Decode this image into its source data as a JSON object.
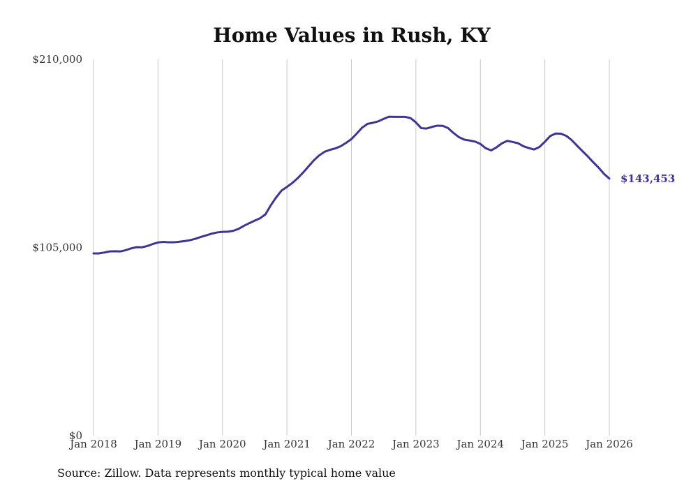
{
  "chart_data": {
    "type": "line",
    "title": "Home Values in Rush, KY",
    "xlabel": "",
    "ylabel": "",
    "ylim": [
      0,
      210000
    ],
    "y_ticks": [
      0,
      105000,
      210000
    ],
    "y_tick_labels": [
      "$0",
      "$105,000",
      "$210,000"
    ],
    "x_range": [
      2018.0,
      2026.0
    ],
    "x_ticks": [
      2018,
      2019,
      2020,
      2021,
      2022,
      2023,
      2024,
      2025,
      2026
    ],
    "x_tick_labels": [
      "Jan 2018",
      "Jan 2019",
      "Jan 2020",
      "Jan 2021",
      "Jan 2022",
      "Jan 2023",
      "Jan 2024",
      "Jan 2025",
      "Jan 2026"
    ],
    "grid": "vertical",
    "line_color": "#3d3590",
    "end_label": "$143,453",
    "series": [
      {
        "name": "Home Values",
        "points": [
          [
            2018.0,
            101700
          ],
          [
            2018.083,
            101700
          ],
          [
            2018.167,
            102200
          ],
          [
            2018.25,
            102800
          ],
          [
            2018.333,
            102900
          ],
          [
            2018.417,
            102800
          ],
          [
            2018.5,
            103500
          ],
          [
            2018.583,
            104500
          ],
          [
            2018.667,
            105200
          ],
          [
            2018.75,
            105100
          ],
          [
            2018.833,
            105800
          ],
          [
            2018.917,
            106900
          ],
          [
            2019.0,
            107800
          ],
          [
            2019.083,
            108100
          ],
          [
            2019.167,
            107900
          ],
          [
            2019.25,
            107900
          ],
          [
            2019.333,
            108200
          ],
          [
            2019.417,
            108600
          ],
          [
            2019.5,
            109100
          ],
          [
            2019.583,
            109900
          ],
          [
            2019.667,
            110900
          ],
          [
            2019.75,
            111800
          ],
          [
            2019.833,
            112700
          ],
          [
            2019.917,
            113400
          ],
          [
            2020.0,
            113700
          ],
          [
            2020.083,
            113800
          ],
          [
            2020.167,
            114300
          ],
          [
            2020.25,
            115400
          ],
          [
            2020.333,
            117100
          ],
          [
            2020.417,
            118600
          ],
          [
            2020.5,
            120000
          ],
          [
            2020.583,
            121300
          ],
          [
            2020.667,
            123500
          ],
          [
            2020.75,
            128600
          ],
          [
            2020.833,
            133000
          ],
          [
            2020.917,
            136800
          ],
          [
            2021.0,
            138800
          ],
          [
            2021.083,
            141000
          ],
          [
            2021.167,
            143700
          ],
          [
            2021.25,
            146800
          ],
          [
            2021.333,
            150200
          ],
          [
            2021.417,
            153600
          ],
          [
            2021.5,
            156400
          ],
          [
            2021.583,
            158400
          ],
          [
            2021.667,
            159500
          ],
          [
            2021.75,
            160300
          ],
          [
            2021.833,
            161500
          ],
          [
            2021.917,
            163400
          ],
          [
            2022.0,
            165500
          ],
          [
            2022.083,
            168600
          ],
          [
            2022.167,
            171900
          ],
          [
            2022.25,
            174000
          ],
          [
            2022.333,
            174600
          ],
          [
            2022.417,
            175400
          ],
          [
            2022.5,
            176800
          ],
          [
            2022.583,
            178000
          ],
          [
            2022.667,
            177900
          ],
          [
            2022.75,
            177900
          ],
          [
            2022.833,
            177900
          ],
          [
            2022.917,
            177200
          ],
          [
            2023.0,
            174800
          ],
          [
            2023.083,
            171600
          ],
          [
            2023.167,
            171400
          ],
          [
            2023.25,
            172300
          ],
          [
            2023.333,
            173000
          ],
          [
            2023.417,
            172900
          ],
          [
            2023.5,
            171600
          ],
          [
            2023.583,
            168900
          ],
          [
            2023.667,
            166600
          ],
          [
            2023.75,
            165200
          ],
          [
            2023.833,
            164700
          ],
          [
            2023.917,
            164100
          ],
          [
            2024.0,
            162800
          ],
          [
            2024.083,
            160400
          ],
          [
            2024.167,
            159200
          ],
          [
            2024.25,
            160900
          ],
          [
            2024.333,
            163100
          ],
          [
            2024.417,
            164500
          ],
          [
            2024.5,
            163900
          ],
          [
            2024.583,
            163200
          ],
          [
            2024.667,
            161500
          ],
          [
            2024.75,
            160500
          ],
          [
            2024.833,
            159700
          ],
          [
            2024.917,
            161100
          ],
          [
            2025.0,
            164000
          ],
          [
            2025.083,
            167200
          ],
          [
            2025.167,
            168600
          ],
          [
            2025.25,
            168500
          ],
          [
            2025.333,
            167300
          ],
          [
            2025.417,
            164900
          ],
          [
            2025.5,
            161800
          ],
          [
            2025.583,
            158800
          ],
          [
            2025.667,
            155800
          ],
          [
            2025.75,
            152600
          ],
          [
            2025.833,
            149600
          ],
          [
            2025.917,
            146100
          ],
          [
            2026.0,
            143453
          ]
        ]
      }
    ]
  },
  "footer": {
    "source_text": "Source: Zillow. Data represents monthly typical home value"
  }
}
